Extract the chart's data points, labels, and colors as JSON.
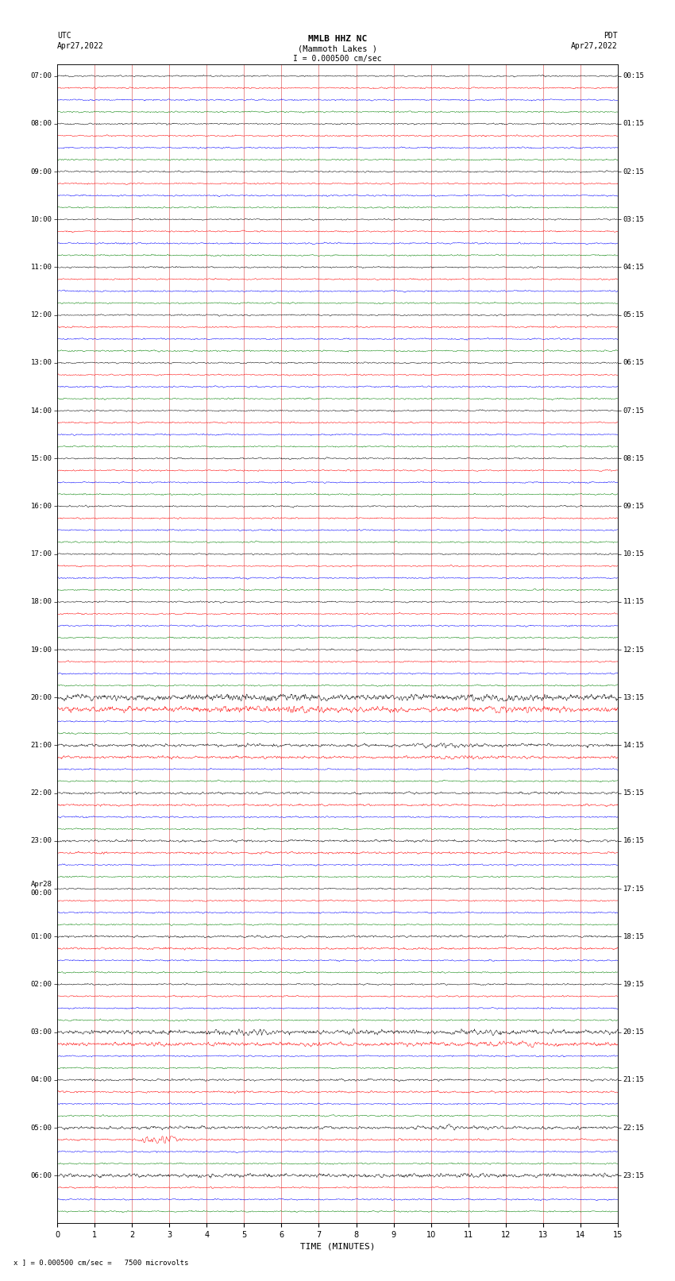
{
  "title_line1": "MMLB HHZ NC",
  "title_line2": "(Mammoth Lakes )",
  "scale_text": "I = 0.000500 cm/sec",
  "left_header1": "UTC",
  "left_header2": "Apr27,2022",
  "right_header1": "PDT",
  "right_header2": "Apr27,2022",
  "xlabel": "TIME (MINUTES)",
  "footer": "x ] = 0.000500 cm/sec =   7500 microvolts",
  "xlim": [
    0,
    15
  ],
  "x_ticks": [
    0,
    1,
    2,
    3,
    4,
    5,
    6,
    7,
    8,
    9,
    10,
    11,
    12,
    13,
    14,
    15
  ],
  "trace_colors": [
    "black",
    "red",
    "blue",
    "green"
  ],
  "n_hours": 24,
  "traces_per_hour": 4,
  "background_color": "white",
  "trace_amplitude": 0.28,
  "noise_scale": 0.055,
  "fig_width": 8.5,
  "fig_height": 16.13,
  "utc_hour_labels": [
    "07:00",
    "08:00",
    "09:00",
    "10:00",
    "11:00",
    "12:00",
    "13:00",
    "14:00",
    "15:00",
    "16:00",
    "17:00",
    "18:00",
    "19:00",
    "20:00",
    "21:00",
    "22:00",
    "23:00",
    "Apr28\n00:00",
    "01:00",
    "02:00",
    "03:00",
    "04:00",
    "05:00",
    "06:00"
  ],
  "pdt_hour_labels": [
    "00:15",
    "01:15",
    "02:15",
    "03:15",
    "04:15",
    "05:15",
    "06:15",
    "07:15",
    "08:15",
    "09:15",
    "10:15",
    "11:15",
    "12:15",
    "13:15",
    "14:15",
    "15:15",
    "16:15",
    "17:15",
    "18:15",
    "19:15",
    "20:15",
    "21:15",
    "22:15",
    "23:15"
  ],
  "big_events": {
    "52": 4.0,
    "53": 3.5,
    "56": 2.0,
    "57": 1.8,
    "60": 1.5,
    "61": 1.4,
    "64": 1.5,
    "65": 1.4,
    "80": 3.0,
    "81": 2.5,
    "84": 1.4,
    "85": 1.3,
    "88": 2.0,
    "89": 1.3,
    "92": 2.5,
    "72": 1.5,
    "73": 1.4
  },
  "blue_event_trace": 89,
  "blue_event_amp": 6.0
}
